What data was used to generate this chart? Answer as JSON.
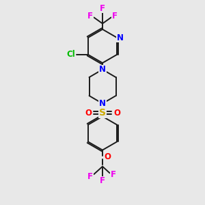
{
  "bg_color": "#e8e8e8",
  "bond_color": "#1a1a1a",
  "N_color": "#0000ff",
  "O_color": "#ff0000",
  "S_color": "#ccaa00",
  "F_color": "#ee00ee",
  "Cl_color": "#00bb00",
  "line_width": 1.4,
  "font_size": 8.5,
  "dbo": 0.07,
  "xlim": [
    0,
    6
  ],
  "ylim": [
    0,
    10
  ]
}
